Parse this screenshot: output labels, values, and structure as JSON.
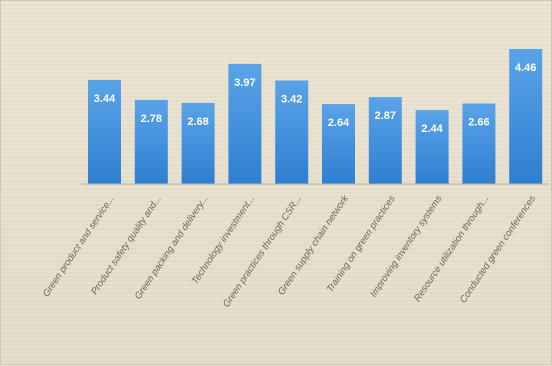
{
  "chart_data": {
    "type": "bar",
    "categories": [
      "Green product and service...",
      "Product safety quality and...",
      "Green packing and delivery...",
      "Technology investment...",
      "Green practices through CSR...",
      "Green supply chain network",
      "Training on green practices",
      "Improving inventory systems",
      "Resource utilization through...",
      "Conducted green conferences"
    ],
    "values": [
      3.44,
      2.78,
      2.68,
      3.97,
      3.42,
      2.64,
      2.87,
      2.44,
      2.66,
      4.46
    ],
    "value_labels": [
      "3.44",
      "2.78",
      "2.68",
      "3.97",
      "3.42",
      "2.64",
      "2.87",
      "2.44",
      "2.66",
      "4.46"
    ],
    "title": "",
    "xlabel": "",
    "ylabel": "",
    "ylim": [
      0,
      4.6
    ],
    "grid": false,
    "legend": "none",
    "colors": {
      "bar_top": "#5aa3e8",
      "bar_bottom": "#2f7fd0",
      "baseline": "#b9b3a2"
    }
  }
}
